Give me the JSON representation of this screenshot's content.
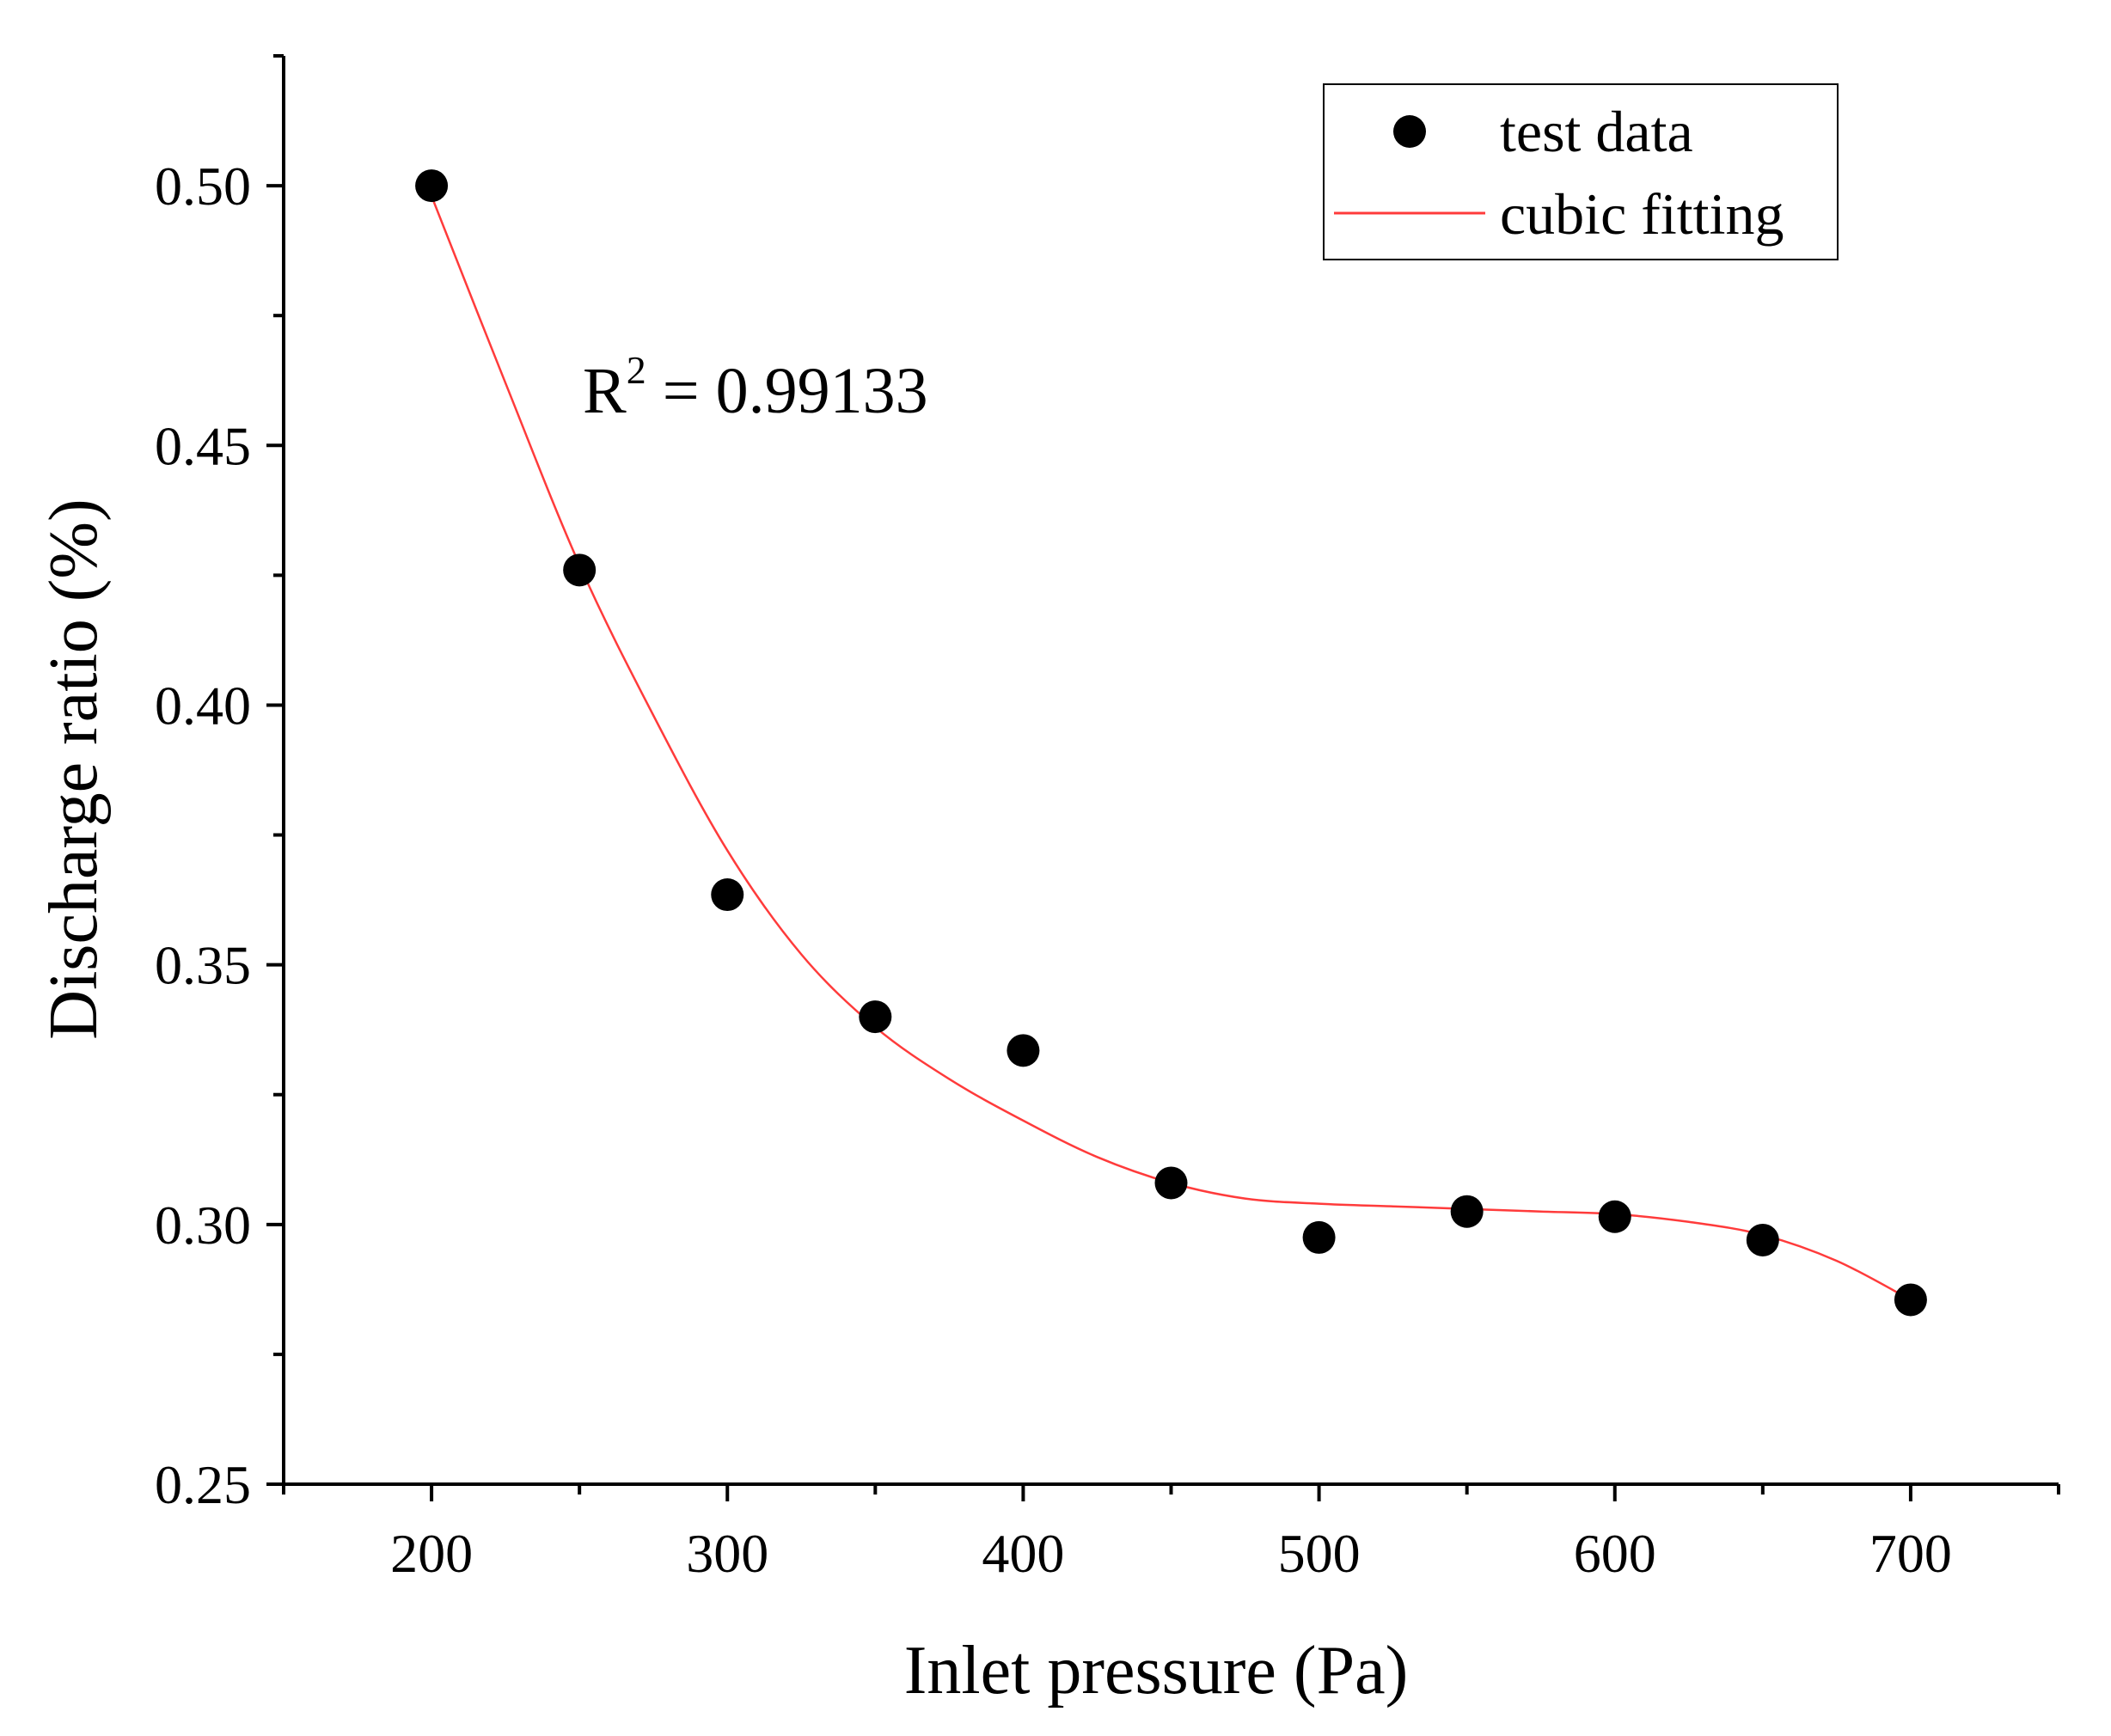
{
  "chart_data": {
    "type": "scatter",
    "title": "",
    "xlabel": "Inlet pressure (Pa)",
    "ylabel": "Discharge ratio (%)",
    "xlim": [
      150,
      750
    ],
    "ylim": [
      0.25,
      0.525
    ],
    "xticks": [
      200,
      300,
      400,
      500,
      600,
      700
    ],
    "xtick_labels": [
      "200",
      "300",
      "400",
      "500",
      "600",
      "700"
    ],
    "yticks": [
      0.25,
      0.3,
      0.35,
      0.4,
      0.45,
      0.5
    ],
    "ytick_labels": [
      "0.25",
      "0.30",
      "0.35",
      "0.40",
      "0.45",
      "0.50"
    ],
    "grid": false,
    "legend_position": "top-right",
    "series": [
      {
        "name": "test data",
        "kind": "scatter",
        "color": "#000000",
        "x": [
          200,
          250,
          300,
          350,
          400,
          450,
          500,
          550,
          600,
          650,
          700
        ],
        "y": [
          0.5,
          0.426,
          0.3635,
          0.34,
          0.3335,
          0.308,
          0.2975,
          0.3025,
          0.3015,
          0.297,
          0.2855
        ]
      },
      {
        "name": "cubic fitting",
        "kind": "line",
        "color": "#ff3b3b",
        "x": [
          200,
          225,
          250,
          275,
          300,
          325,
          350,
          375,
          400,
          425,
          450,
          475,
          500,
          525,
          550,
          575,
          600,
          625,
          650,
          675,
          700
        ],
        "y": [
          0.498,
          0.462,
          0.427,
          0.398,
          0.372,
          0.352,
          0.338,
          0.328,
          0.32,
          0.313,
          0.308,
          0.305,
          0.304,
          0.3035,
          0.303,
          0.3025,
          0.302,
          0.3005,
          0.298,
          0.293,
          0.2855
        ]
      }
    ],
    "annotations": [
      {
        "text_base": "R",
        "text_sup": "2",
        "text_rest": " = 0.99133",
        "x": 300,
        "y": 0.465
      }
    ]
  }
}
